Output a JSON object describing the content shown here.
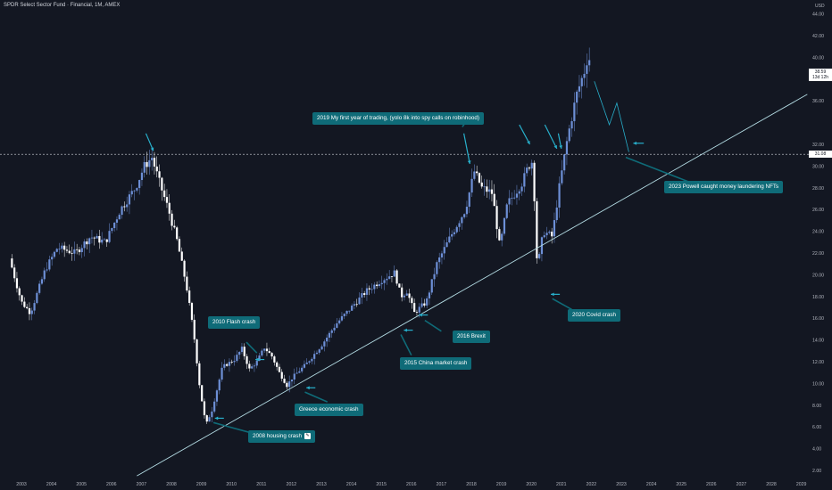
{
  "header": {
    "title": "SPDR Select Sector Fund · Financial, 1M, AMEX",
    "currency": "USD"
  },
  "price_tags": {
    "current_price": "38.59",
    "current_countdown": "13d 12h",
    "hline_price": "31.08"
  },
  "annotations": [
    {
      "id": "trading",
      "text": "2019 My first year of trading, (yolo 8k into spy calls on robinhood)"
    },
    {
      "id": "powell",
      "text": "2023 Powell caught money laundering NFTs"
    },
    {
      "id": "covid",
      "text": "2020 Covid crash"
    },
    {
      "id": "flash",
      "text": "2010 Flash crash"
    },
    {
      "id": "brexit",
      "text": "2016 Brexit"
    },
    {
      "id": "china",
      "text": "2015 China market crash"
    },
    {
      "id": "greece",
      "text": "Greece economic crash"
    },
    {
      "id": "housing",
      "text": "2008 housing crash"
    }
  ],
  "colors": {
    "background": "#131722",
    "candle_up": "#6d8fd6",
    "candle_down": "#ffffff",
    "trendline": "#b4dce4",
    "arrow": "#28b0cc",
    "label_bg": "#0f6b78"
  },
  "chart_data": {
    "type": "candlestick",
    "title": "SPDR Select Sector Fund · Financial, 1M, AMEX",
    "xlabel": "",
    "ylabel": "USD",
    "y_scale": "linear",
    "ylim": [
      1.5,
      45
    ],
    "xlim": [
      2002.6,
      2029.3
    ],
    "x_ticks": [
      "2003",
      "2004",
      "2005",
      "2006",
      "2007",
      "2008",
      "2009",
      "2010",
      "2011",
      "2012",
      "2013",
      "2014",
      "2015",
      "2016",
      "2017",
      "2018",
      "2019",
      "2020",
      "2021",
      "2022",
      "2023",
      "2024",
      "2025",
      "2026",
      "2027",
      "2028",
      "2029"
    ],
    "y_ticks": [
      "2.00",
      "4.00",
      "6.00",
      "8.00",
      "10.00",
      "12.00",
      "14.00",
      "16.00",
      "18.00",
      "20.00",
      "22.00",
      "24.00",
      "26.00",
      "28.00",
      "30.00",
      "32.00",
      "36.00",
      "38.00",
      "40.00",
      "42.00",
      "44.00"
    ],
    "grid": false,
    "horizontal_line": 31.08,
    "last_close": 38.59,
    "closes_anchors": [
      [
        2002.6,
        21.5
      ],
      [
        2003.0,
        17.5
      ],
      [
        2003.3,
        16.5
      ],
      [
        2003.8,
        20.5
      ],
      [
        2004.2,
        22.5
      ],
      [
        2004.8,
        22.0
      ],
      [
        2005.3,
        23.5
      ],
      [
        2005.8,
        23.0
      ],
      [
        2006.3,
        26.0
      ],
      [
        2006.8,
        28.0
      ],
      [
        2007.1,
        30.0
      ],
      [
        2007.35,
        30.8
      ],
      [
        2007.6,
        28.5
      ],
      [
        2007.9,
        26.0
      ],
      [
        2008.2,
        23.0
      ],
      [
        2008.5,
        19.0
      ],
      [
        2008.75,
        14.5
      ],
      [
        2008.95,
        9.5
      ],
      [
        2009.15,
        6.2
      ],
      [
        2009.35,
        7.5
      ],
      [
        2009.7,
        11.5
      ],
      [
        2010.1,
        12.2
      ],
      [
        2010.35,
        13.2
      ],
      [
        2010.6,
        11.3
      ],
      [
        2010.85,
        12.0
      ],
      [
        2011.1,
        13.3
      ],
      [
        2011.35,
        12.5
      ],
      [
        2011.6,
        11.0
      ],
      [
        2011.85,
        9.8
      ],
      [
        2012.05,
        10.6
      ],
      [
        2012.5,
        11.8
      ],
      [
        2013.0,
        13.5
      ],
      [
        2013.5,
        15.5
      ],
      [
        2014.0,
        17.0
      ],
      [
        2014.5,
        18.5
      ],
      [
        2015.0,
        19.5
      ],
      [
        2015.45,
        20.2
      ],
      [
        2015.65,
        18.0
      ],
      [
        2015.85,
        18.5
      ],
      [
        2016.1,
        16.5
      ],
      [
        2016.5,
        17.5
      ],
      [
        2016.85,
        21.0
      ],
      [
        2017.3,
        23.5
      ],
      [
        2017.8,
        26.0
      ],
      [
        2018.1,
        29.5
      ],
      [
        2018.35,
        28.0
      ],
      [
        2018.7,
        27.5
      ],
      [
        2018.95,
        22.5
      ],
      [
        2019.2,
        26.5
      ],
      [
        2019.7,
        28.5
      ],
      [
        2019.9,
        30.0
      ],
      [
        2020.05,
        30.5
      ],
      [
        2020.2,
        20.5
      ],
      [
        2020.4,
        24.0
      ],
      [
        2020.7,
        23.5
      ],
      [
        2020.9,
        27.5
      ],
      [
        2021.2,
        32.5
      ],
      [
        2021.5,
        36.5
      ],
      [
        2021.8,
        39.0
      ],
      [
        2021.9,
        40.5
      ],
      [
        2022.0,
        38.59
      ]
    ],
    "trendline": [
      [
        2006.85,
        1.5
      ],
      [
        2029.2,
        36.6
      ]
    ],
    "projection_path": [
      [
        2022.1,
        37.8
      ],
      [
        2022.6,
        33.8
      ],
      [
        2022.85,
        35.8
      ],
      [
        2023.25,
        31.3
      ]
    ],
    "arrows": [
      {
        "from": [
          2007.15,
          33.0
        ],
        "to": [
          2007.4,
          31.4
        ]
      },
      {
        "from": [
          2017.75,
          33.0
        ],
        "to": [
          2017.95,
          30.2
        ]
      },
      {
        "from": [
          2019.6,
          33.8
        ],
        "to": [
          2019.95,
          32.0
        ]
      },
      {
        "from": [
          2020.45,
          33.8
        ],
        "to": [
          2020.85,
          31.6
        ]
      },
      {
        "from": [
          2020.9,
          33.0
        ],
        "to": [
          2021.0,
          31.6
        ]
      },
      {
        "from": [
          2009.75,
          6.8
        ],
        "to": [
          2009.45,
          6.8
        ]
      },
      {
        "from": [
          2011.1,
          12.2
        ],
        "to": [
          2010.8,
          12.2
        ]
      },
      {
        "from": [
          2012.8,
          9.6
        ],
        "to": [
          2012.5,
          9.6
        ]
      },
      {
        "from": [
          2016.05,
          14.9
        ],
        "to": [
          2015.75,
          14.9
        ]
      },
      {
        "from": [
          2016.55,
          16.3
        ],
        "to": [
          2016.25,
          16.3
        ]
      },
      {
        "from": [
          2020.95,
          18.2
        ],
        "to": [
          2020.65,
          18.2
        ]
      },
      {
        "from": [
          2023.75,
          32.1
        ],
        "to": [
          2023.4,
          32.1
        ]
      }
    ],
    "callout_lines": [
      {
        "from": [
          2023.15,
          30.8
        ],
        "to": [
          2025.3,
          28.5
        ]
      },
      {
        "from": [
          2020.7,
          17.8
        ],
        "to": [
          2021.35,
          16.8
        ]
      },
      {
        "from": [
          2016.45,
          15.8
        ],
        "to": [
          2017.0,
          14.8
        ]
      },
      {
        "from": [
          2015.65,
          14.5
        ],
        "to": [
          2016.0,
          12.6
        ]
      },
      {
        "from": [
          2012.45,
          9.2
        ],
        "to": [
          2013.2,
          8.3
        ]
      },
      {
        "from": [
          2010.5,
          13.8
        ],
        "to": [
          2010.85,
          12.8
        ]
      },
      {
        "from": [
          2009.4,
          6.4
        ],
        "to": [
          2010.6,
          5.5
        ]
      },
      {
        "from": [
          2017.7,
          33.6
        ],
        "to": [
          2017.85,
          34.2
        ]
      }
    ]
  }
}
